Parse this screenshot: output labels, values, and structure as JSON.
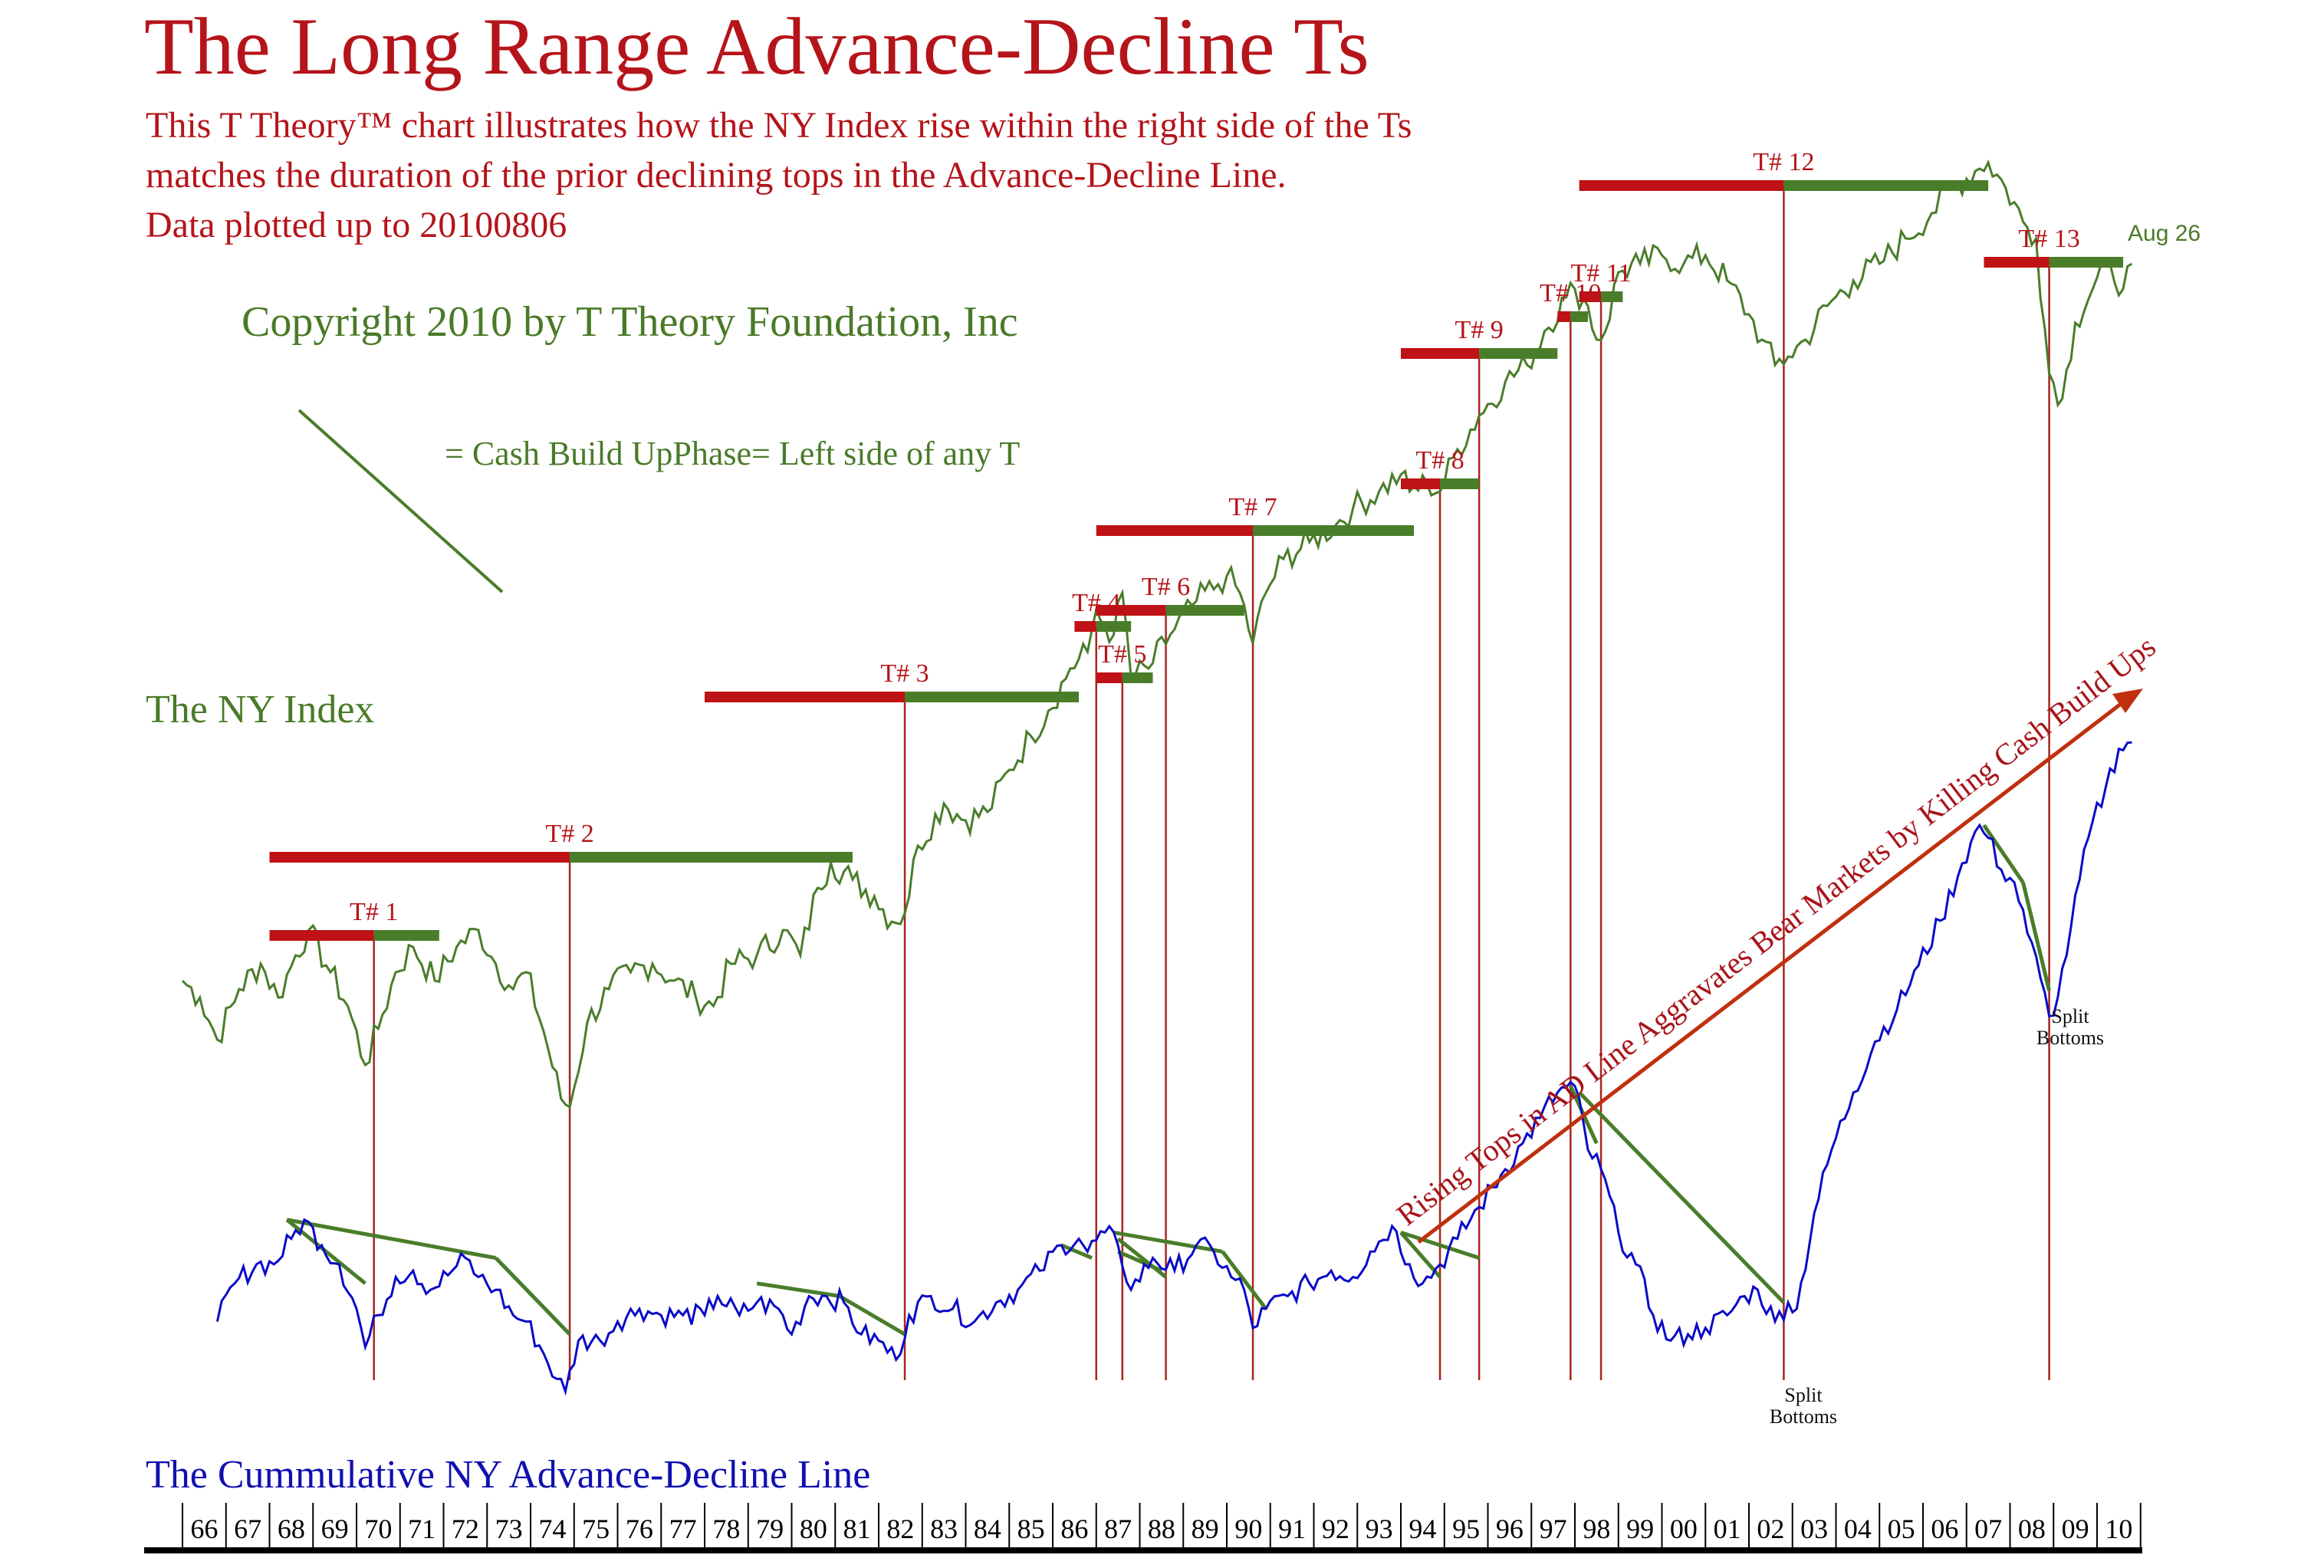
{
  "header": {
    "title": "The Long Range Advance-Decline Ts",
    "subtitle_lines": [
      "This T Theory™  chart illustrates how the NY Index rise within the right  side of the Ts",
      "matches the duration  of the prior declining tops in the Advance-Decline Line.",
      "Data plotted up to 20100806"
    ],
    "copyright": "Copyright 2010 by T Theory Foundation, Inc",
    "legend_text": "= Cash Build UpPhase= Left side of any T"
  },
  "colors": {
    "title_red": "#b5141a",
    "bar_red": "#be1216",
    "bar_green": "#4a7d2a",
    "ny_line": "#4a7d2a",
    "ad_line": "#0a0ac8",
    "t_vertical": "#a8241e",
    "arrow": "#c0300e",
    "axis": "#000000"
  },
  "chart_data": {
    "type": "line",
    "title": "The Long Range Advance-Decline Ts",
    "xlabel": "",
    "ylabel": "",
    "x_tick_labels": [
      "66",
      "67",
      "68",
      "69",
      "70",
      "71",
      "72",
      "73",
      "74",
      "75",
      "76",
      "77",
      "78",
      "79",
      "80",
      "81",
      "82",
      "83",
      "84",
      "85",
      "86",
      "87",
      "88",
      "89",
      "90",
      "91",
      "92",
      "93",
      "94",
      "95",
      "96",
      "97",
      "98",
      "99",
      "00",
      "01",
      "02",
      "03",
      "04",
      "05",
      "06",
      "07",
      "08",
      "09",
      "10"
    ],
    "xlim": [
      1966.0,
      2010.9
    ],
    "series": [
      {
        "name": "The NY Index",
        "note": "relative scale 0-100 (no y axis shown)",
        "points": [
          [
            1966.0,
            11
          ],
          [
            1966.4,
            9
          ],
          [
            1966.8,
            4
          ],
          [
            1967.3,
            10
          ],
          [
            1967.8,
            13
          ],
          [
            1968.2,
            9
          ],
          [
            1968.6,
            14
          ],
          [
            1968.9,
            17
          ],
          [
            1969.4,
            12
          ],
          [
            1969.8,
            8
          ],
          [
            1970.2,
            1
          ],
          [
            1970.6,
            7
          ],
          [
            1970.9,
            12
          ],
          [
            1971.3,
            15
          ],
          [
            1971.8,
            11
          ],
          [
            1972.3,
            15
          ],
          [
            1972.8,
            17
          ],
          [
            1973.2,
            13
          ],
          [
            1973.6,
            10
          ],
          [
            1973.9,
            12
          ],
          [
            1974.3,
            5
          ],
          [
            1974.7,
            -3
          ],
          [
            1974.9,
            -4
          ],
          [
            1975.3,
            6
          ],
          [
            1975.8,
            10
          ],
          [
            1976.3,
            12
          ],
          [
            1976.8,
            13
          ],
          [
            1977.3,
            11
          ],
          [
            1977.8,
            9
          ],
          [
            1978.2,
            8
          ],
          [
            1978.6,
            13
          ],
          [
            1979.2,
            14
          ],
          [
            1979.8,
            17
          ],
          [
            1980.2,
            14
          ],
          [
            1980.6,
            22
          ],
          [
            1980.9,
            25
          ],
          [
            1981.4,
            23
          ],
          [
            1981.9,
            21
          ],
          [
            1982.3,
            18
          ],
          [
            1982.6,
            19
          ],
          [
            1982.9,
            27
          ],
          [
            1983.5,
            32
          ],
          [
            1984.0,
            30
          ],
          [
            1984.5,
            31
          ],
          [
            1985.0,
            36
          ],
          [
            1985.5,
            40
          ],
          [
            1985.9,
            43
          ],
          [
            1986.4,
            48
          ],
          [
            1986.8,
            50
          ],
          [
            1987.0,
            55
          ],
          [
            1987.2,
            53
          ],
          [
            1987.4,
            52
          ],
          [
            1987.6,
            57
          ],
          [
            1987.8,
            47
          ],
          [
            1988.2,
            48
          ],
          [
            1988.7,
            52
          ],
          [
            1989.3,
            56
          ],
          [
            1989.8,
            58
          ],
          [
            1990.0,
            59
          ],
          [
            1990.3,
            57
          ],
          [
            1990.6,
            51
          ],
          [
            1990.9,
            57
          ],
          [
            1991.3,
            61
          ],
          [
            1991.9,
            63
          ],
          [
            1992.5,
            65
          ],
          [
            1992.9,
            67
          ],
          [
            1993.5,
            69
          ],
          [
            1994.0,
            71
          ],
          [
            1994.2,
            69
          ],
          [
            1994.6,
            70
          ],
          [
            1994.9,
            69
          ],
          [
            1995.3,
            74
          ],
          [
            1995.8,
            78
          ],
          [
            1996.4,
            82
          ],
          [
            1996.9,
            84
          ],
          [
            1997.3,
            88
          ],
          [
            1997.8,
            92
          ],
          [
            1998.0,
            93
          ],
          [
            1998.3,
            91
          ],
          [
            1998.5,
            87
          ],
          [
            1998.7,
            88
          ],
          [
            1999.0,
            95
          ],
          [
            1999.5,
            96
          ],
          [
            2000.0,
            97
          ],
          [
            2000.5,
            96
          ],
          [
            2001.0,
            97
          ],
          [
            2001.5,
            94
          ],
          [
            2002.0,
            90
          ],
          [
            2002.3,
            87
          ],
          [
            2002.6,
            84
          ],
          [
            2002.9,
            85
          ],
          [
            2003.3,
            87
          ],
          [
            2003.8,
            91
          ],
          [
            2004.4,
            94
          ],
          [
            2005.0,
            96
          ],
          [
            2005.6,
            99
          ],
          [
            2006.2,
            102
          ],
          [
            2006.7,
            105
          ],
          [
            2007.2,
            107
          ],
          [
            2007.5,
            108
          ],
          [
            2007.9,
            105
          ],
          [
            2008.3,
            101
          ],
          [
            2008.6,
            99
          ],
          [
            2008.9,
            83
          ],
          [
            2009.2,
            80
          ],
          [
            2009.5,
            89
          ],
          [
            2009.9,
            93
          ],
          [
            2010.3,
            96
          ],
          [
            2010.6,
            93
          ],
          [
            2010.8,
            96
          ]
        ]
      },
      {
        "name": "The Cummulative NY Advance-Decline Line",
        "note": "relative scale 0-100 (no y axis shown)",
        "points": [
          [
            1966.8,
            8
          ],
          [
            1967.2,
            14
          ],
          [
            1967.7,
            17
          ],
          [
            1968.1,
            17
          ],
          [
            1968.5,
            21
          ],
          [
            1968.8,
            24
          ],
          [
            1969.2,
            20
          ],
          [
            1969.6,
            17
          ],
          [
            1970.0,
            10
          ],
          [
            1970.2,
            4
          ],
          [
            1970.5,
            9
          ],
          [
            1970.9,
            15
          ],
          [
            1971.3,
            16
          ],
          [
            1971.7,
            13
          ],
          [
            1972.2,
            16
          ],
          [
            1972.5,
            18
          ],
          [
            1972.8,
            15
          ],
          [
            1973.2,
            13
          ],
          [
            1973.6,
            9
          ],
          [
            1973.9,
            8
          ],
          [
            1974.3,
            3
          ],
          [
            1974.6,
            -1
          ],
          [
            1974.8,
            -3
          ],
          [
            1975.1,
            5
          ],
          [
            1975.6,
            5
          ],
          [
            1976.0,
            8
          ],
          [
            1976.5,
            10
          ],
          [
            1977.0,
            9
          ],
          [
            1977.5,
            9
          ],
          [
            1978.0,
            9
          ],
          [
            1978.3,
            12
          ],
          [
            1978.8,
            9
          ],
          [
            1979.2,
            11
          ],
          [
            1979.7,
            10
          ],
          [
            1980.0,
            6
          ],
          [
            1980.4,
            12
          ],
          [
            1980.8,
            12
          ],
          [
            1981.2,
            11
          ],
          [
            1981.6,
            6
          ],
          [
            1982.0,
            5
          ],
          [
            1982.4,
            2
          ],
          [
            1982.7,
            9
          ],
          [
            1983.2,
            12
          ],
          [
            1983.7,
            10
          ],
          [
            1984.2,
            8
          ],
          [
            1984.7,
            11
          ],
          [
            1985.2,
            13
          ],
          [
            1985.7,
            16
          ],
          [
            1986.2,
            20
          ],
          [
            1986.6,
            21
          ],
          [
            1986.8,
            19
          ],
          [
            1987.2,
            22
          ],
          [
            1987.5,
            20
          ],
          [
            1987.8,
            13
          ],
          [
            1988.3,
            18
          ],
          [
            1988.8,
            16
          ],
          [
            1989.3,
            20
          ],
          [
            1989.7,
            19
          ],
          [
            1990.1,
            15
          ],
          [
            1990.4,
            13
          ],
          [
            1990.6,
            7
          ],
          [
            1990.9,
            10
          ],
          [
            1991.4,
            12
          ],
          [
            1991.9,
            14
          ],
          [
            1992.4,
            16
          ],
          [
            1992.9,
            15
          ],
          [
            1993.3,
            19
          ],
          [
            1993.8,
            23
          ],
          [
            1994.2,
            17
          ],
          [
            1994.5,
            14
          ],
          [
            1994.9,
            17
          ],
          [
            1995.3,
            21
          ],
          [
            1995.8,
            26
          ],
          [
            1996.3,
            31
          ],
          [
            1996.8,
            36
          ],
          [
            1997.2,
            40
          ],
          [
            1997.6,
            44
          ],
          [
            1998.0,
            45
          ],
          [
            1998.3,
            35
          ],
          [
            1998.6,
            32
          ],
          [
            1999.0,
            22
          ],
          [
            1999.4,
            17
          ],
          [
            1999.8,
            9
          ],
          [
            2000.2,
            5
          ],
          [
            2000.6,
            6
          ],
          [
            2001.0,
            7
          ],
          [
            2001.5,
            9
          ],
          [
            2001.9,
            12
          ],
          [
            2002.2,
            13
          ],
          [
            2002.6,
            8
          ],
          [
            2002.9,
            11
          ],
          [
            2003.1,
            10
          ],
          [
            2003.5,
            25
          ],
          [
            2003.9,
            35
          ],
          [
            2004.4,
            44
          ],
          [
            2004.9,
            52
          ],
          [
            2005.4,
            57
          ],
          [
            2005.9,
            64
          ],
          [
            2006.4,
            71
          ],
          [
            2006.9,
            80
          ],
          [
            2007.3,
            86
          ],
          [
            2007.5,
            84
          ],
          [
            2007.8,
            79
          ],
          [
            2008.1,
            77
          ],
          [
            2008.4,
            69
          ],
          [
            2008.7,
            62
          ],
          [
            2008.9,
            56
          ],
          [
            2009.1,
            59
          ],
          [
            2009.4,
            70
          ],
          [
            2009.8,
            84
          ],
          [
            2010.2,
            92
          ],
          [
            2010.5,
            98
          ],
          [
            2010.8,
            99
          ]
        ]
      }
    ],
    "ts": [
      {
        "label": "T# 1",
        "left": 1968.0,
        "center": 1970.4,
        "right": 1971.9,
        "level": 1
      },
      {
        "label": "T# 2",
        "left": 1968.0,
        "center": 1974.9,
        "right": 1981.4,
        "level": 2
      },
      {
        "label": "T# 3",
        "left": 1978.0,
        "center": 1982.6,
        "right": 1986.6,
        "level": 3
      },
      {
        "label": "T# 4",
        "left": 1986.5,
        "center": 1987.0,
        "right": 1987.8,
        "level": 4
      },
      {
        "label": "T# 5",
        "left": 1987.0,
        "center": 1987.6,
        "right": 1988.3,
        "level": 5
      },
      {
        "label": "T# 6",
        "left": 1987.0,
        "center": 1988.6,
        "right": 1990.4,
        "level": 6
      },
      {
        "label": "T# 7",
        "left": 1987.0,
        "center": 1990.6,
        "right": 1994.3,
        "level": 7
      },
      {
        "label": "T# 8",
        "left": 1994.0,
        "center": 1994.9,
        "right": 1995.8,
        "level": 8
      },
      {
        "label": "T# 9",
        "left": 1994.0,
        "center": 1995.8,
        "right": 1997.6,
        "level": 9
      },
      {
        "label": "T# 10",
        "left": 1997.6,
        "center": 1997.9,
        "right": 1998.3,
        "level": 10
      },
      {
        "label": "T# 11",
        "left": 1998.1,
        "center": 1998.6,
        "right": 1999.1,
        "level": 11
      },
      {
        "label": "T# 12",
        "left": 1998.1,
        "center": 2002.8,
        "right": 2007.5,
        "level": 12
      },
      {
        "label": "T# 13",
        "left": 2007.4,
        "center": 2008.9,
        "right": 2010.6,
        "level": 13
      }
    ],
    "annotations": {
      "arrow_text": "Rising Tops in AD Line Aggravates Bear Markets by Killing Cash Build Ups",
      "split_bottoms_1": [
        "Split",
        "Bottoms"
      ],
      "split_bottoms_2": [
        "Split",
        "Bottoms"
      ],
      "aug_label": "Aug 26"
    },
    "ad_trendlines": [
      [
        [
          1968.4,
          24
        ],
        [
          1970.2,
          14
        ]
      ],
      [
        [
          1968.4,
          24
        ],
        [
          1973.2,
          18
        ]
      ],
      [
        [
          1973.2,
          18
        ],
        [
          1974.9,
          6
        ]
      ],
      [
        [
          1979.2,
          14
        ],
        [
          1981.1,
          12
        ]
      ],
      [
        [
          1981.1,
          12
        ],
        [
          1982.6,
          6
        ]
      ],
      [
        [
          1986.2,
          20
        ],
        [
          1986.9,
          18
        ]
      ],
      [
        [
          1987.4,
          22
        ],
        [
          1989.9,
          19
        ]
      ],
      [
        [
          1989.9,
          19
        ],
        [
          1990.9,
          10
        ]
      ],
      [
        [
          1987.5,
          21
        ],
        [
          1988.6,
          15
        ]
      ],
      [
        [
          1987.5,
          19
        ],
        [
          1988.5,
          16
        ]
      ],
      [
        [
          1994.0,
          22
        ],
        [
          1994.9,
          15
        ]
      ],
      [
        [
          1994.0,
          22
        ],
        [
          1995.8,
          18
        ]
      ],
      [
        [
          1997.9,
          45
        ],
        [
          1998.5,
          36
        ]
      ],
      [
        [
          1998.1,
          44
        ],
        [
          2002.8,
          11
        ]
      ],
      [
        [
          2007.4,
          86
        ],
        [
          2008.3,
          77
        ]
      ],
      [
        [
          2008.3,
          77
        ],
        [
          2008.9,
          60
        ]
      ]
    ]
  }
}
